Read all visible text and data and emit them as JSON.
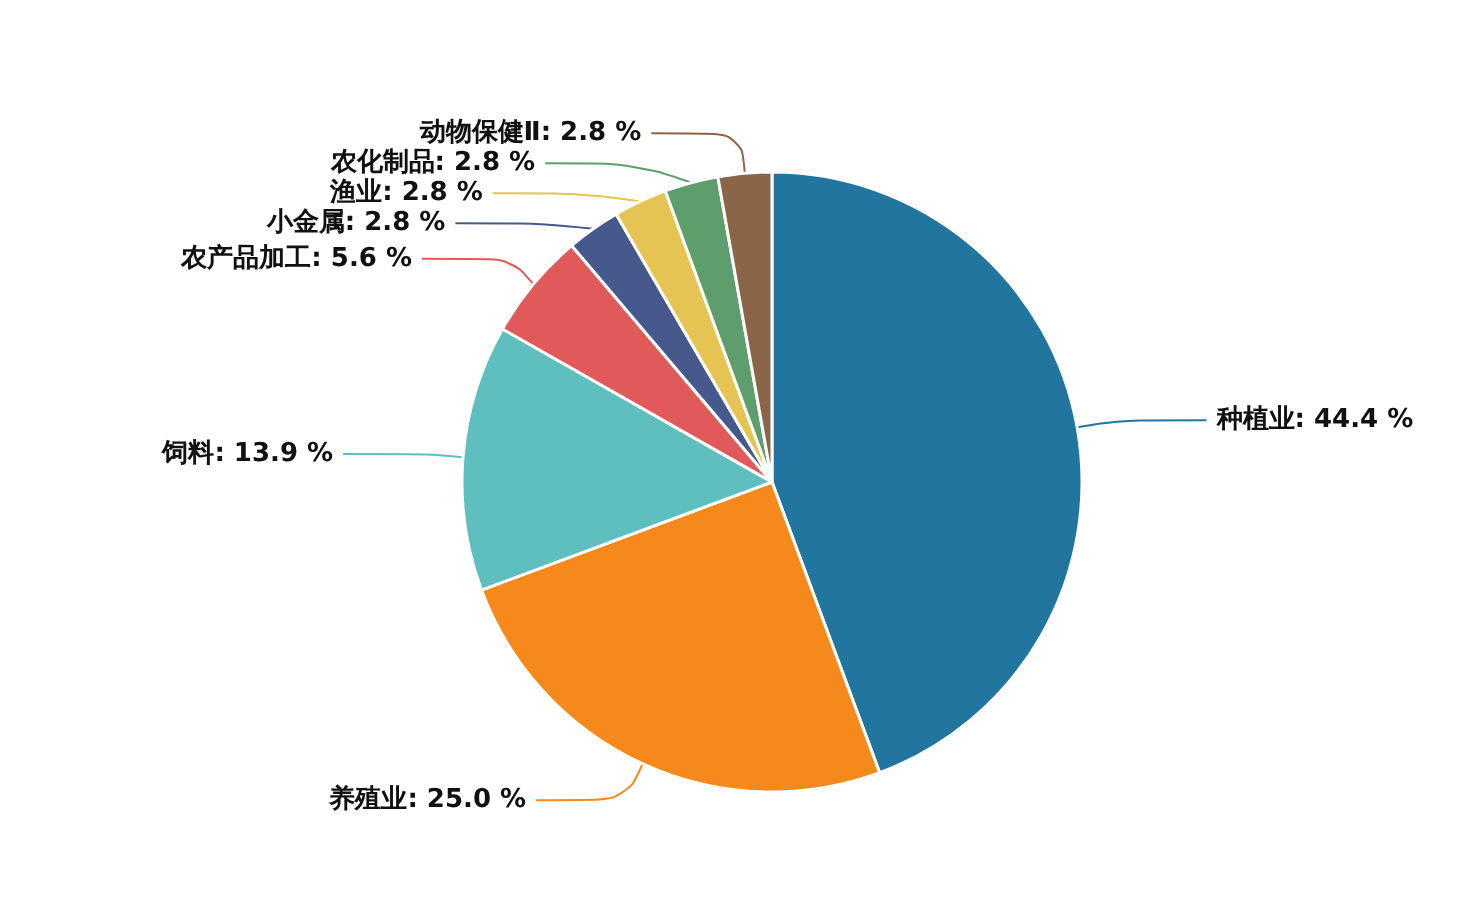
{
  "chart_data": {
    "type": "pie",
    "categories": [
      "种植业",
      "养殖业",
      "饲料",
      "农产品加工",
      "小金属",
      "渔业",
      "农化制品",
      "动物保健Ⅱ"
    ],
    "values": [
      44.4,
      25.0,
      13.9,
      5.6,
      2.8,
      2.8,
      2.8,
      2.8
    ],
    "colors": [
      "#21759f",
      "#f5891b",
      "#5fbebe",
      "#e05a5a",
      "#46588c",
      "#e6c453",
      "#5e9e6c",
      "#8b6548"
    ],
    "value_labels": [
      "44.4 %",
      "25.0 %",
      "13.9 %",
      "5.6 %",
      "2.8 %",
      "2.8 %",
      "2.8 %",
      "2.8 %"
    ],
    "legend": false
  }
}
